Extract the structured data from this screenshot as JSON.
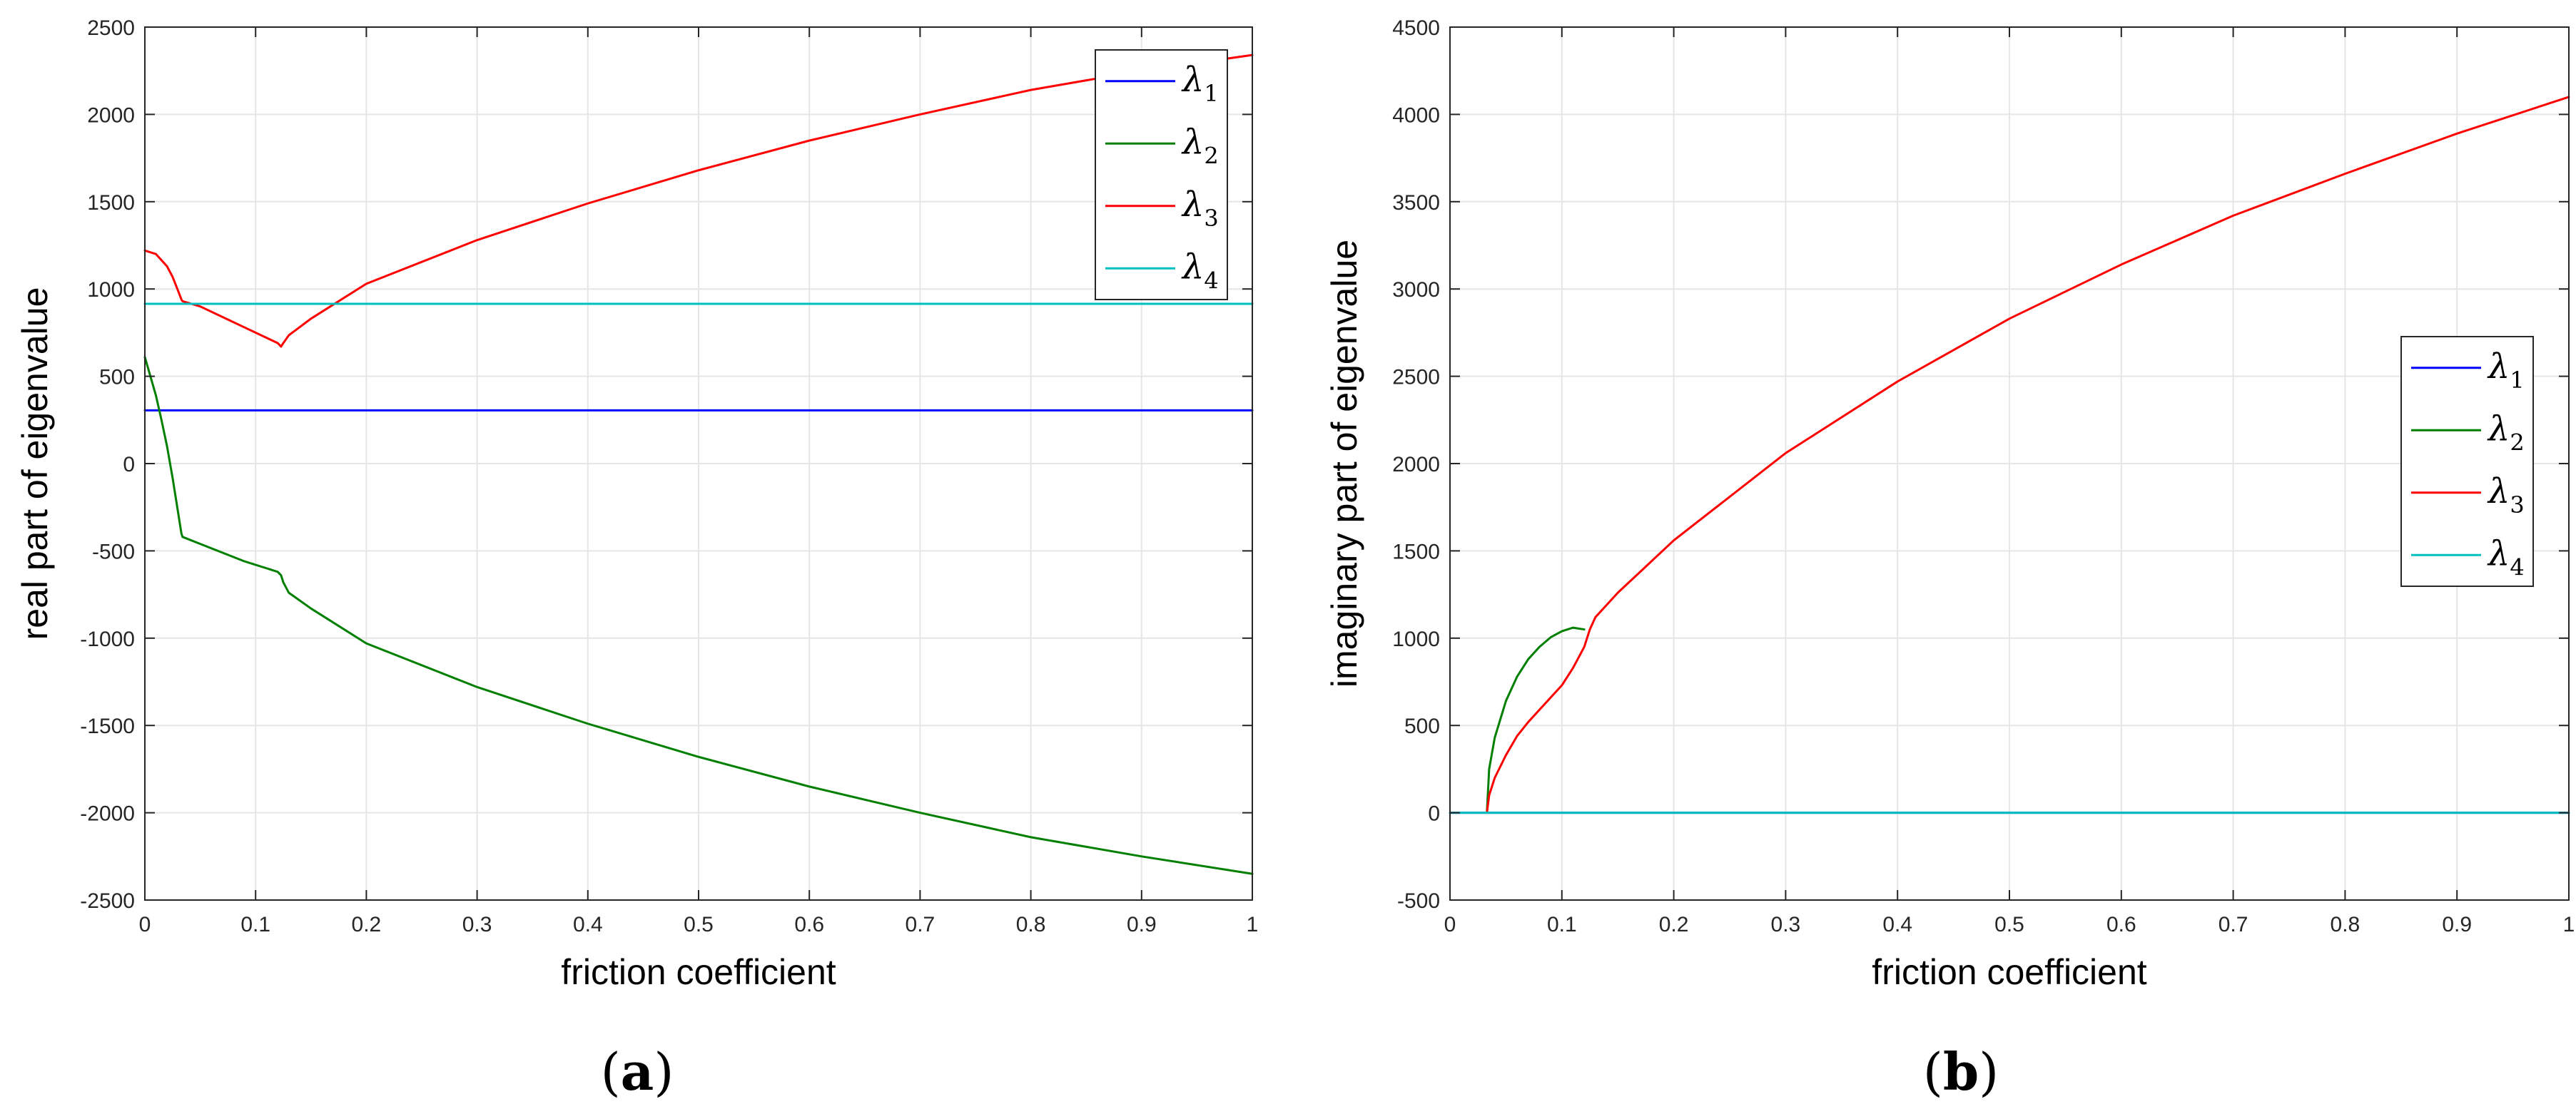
{
  "chart_data": [
    {
      "type": "line",
      "panel_label": "a",
      "title": "",
      "xlabel": "friction coefficient",
      "ylabel": "real part of eigenvalue",
      "xlim": [
        0,
        1
      ],
      "ylim": [
        -2500,
        2500
      ],
      "xticks": [
        0,
        0.1,
        0.2,
        0.3,
        0.4,
        0.5,
        0.6,
        0.7,
        0.8,
        0.9,
        1
      ],
      "xtick_labels": [
        "0",
        "0.1",
        "0.2",
        "0.3",
        "0.4",
        "0.5",
        "0.6",
        "0.7",
        "0.8",
        "0.9",
        "1"
      ],
      "yticks": [
        -2500,
        -2000,
        -1500,
        -1000,
        -500,
        0,
        500,
        1000,
        1500,
        2000,
        2500
      ],
      "ytick_labels": [
        "-2500",
        "-2000",
        "-1500",
        "-1000",
        "-500",
        "0",
        "500",
        "1000",
        "1500",
        "2000",
        "2500"
      ],
      "grid": true,
      "legend_position": "top-right",
      "series": [
        {
          "name": "λ1",
          "base": "λ",
          "sub": "1",
          "color": "#0000ff",
          "x": [
            0,
            1
          ],
          "y": [
            305,
            305
          ]
        },
        {
          "name": "λ2",
          "base": "λ",
          "sub": "2",
          "color": "#007f00",
          "x": [
            0,
            0.005,
            0.01,
            0.015,
            0.02,
            0.025,
            0.03,
            0.033,
            0.034,
            0.05,
            0.07,
            0.09,
            0.11,
            0.12,
            0.123,
            0.125,
            0.13,
            0.15,
            0.2,
            0.3,
            0.4,
            0.5,
            0.6,
            0.7,
            0.8,
            0.9,
            1.0
          ],
          "y": [
            610,
            500,
            390,
            250,
            100,
            -80,
            -280,
            -400,
            -420,
            -460,
            -510,
            -560,
            -600,
            -620,
            -640,
            -680,
            -740,
            -830,
            -1030,
            -1280,
            -1490,
            -1680,
            -1850,
            -2000,
            -2140,
            -2250,
            -2350
          ]
        },
        {
          "name": "λ3",
          "base": "λ",
          "sub": "3",
          "color": "#ff0000",
          "x": [
            0,
            0.01,
            0.02,
            0.025,
            0.03,
            0.033,
            0.034,
            0.05,
            0.07,
            0.09,
            0.11,
            0.12,
            0.123,
            0.125,
            0.13,
            0.15,
            0.2,
            0.3,
            0.4,
            0.5,
            0.6,
            0.7,
            0.8,
            0.9,
            1.0
          ],
          "y": [
            1220,
            1200,
            1130,
            1070,
            990,
            940,
            930,
            900,
            840,
            780,
            720,
            690,
            670,
            690,
            735,
            830,
            1030,
            1280,
            1490,
            1680,
            1850,
            2000,
            2140,
            2250,
            2340
          ]
        },
        {
          "name": "λ4",
          "base": "λ",
          "sub": "4",
          "color": "#00bfbf",
          "x": [
            0,
            1
          ],
          "y": [
            915,
            915
          ]
        }
      ]
    },
    {
      "type": "line",
      "panel_label": "b",
      "title": "",
      "xlabel": "friction coefficient",
      "ylabel": "imaginary part of eigenvalue",
      "xlim": [
        0,
        1
      ],
      "ylim": [
        -500,
        4500
      ],
      "xticks": [
        0,
        0.1,
        0.2,
        0.3,
        0.4,
        0.5,
        0.6,
        0.7,
        0.8,
        0.9,
        1
      ],
      "xtick_labels": [
        "0",
        "0.1",
        "0.2",
        "0.3",
        "0.4",
        "0.5",
        "0.6",
        "0.7",
        "0.8",
        "0.9",
        "1"
      ],
      "yticks": [
        -500,
        0,
        500,
        1000,
        1500,
        2000,
        2500,
        3000,
        3500,
        4000,
        4500
      ],
      "ytick_labels": [
        "-500",
        "0",
        "500",
        "1000",
        "1500",
        "2000",
        "2500",
        "3000",
        "3500",
        "4000",
        "4500"
      ],
      "grid": true,
      "legend_position": "middle-right",
      "series": [
        {
          "name": "λ1",
          "base": "λ",
          "sub": "1",
          "color": "#0000ff",
          "x": [
            0,
            1
          ],
          "y": [
            0,
            0
          ]
        },
        {
          "name": "λ2",
          "base": "λ",
          "sub": "2",
          "color": "#007f00",
          "x": [
            0.033,
            0.035,
            0.04,
            0.05,
            0.06,
            0.07,
            0.08,
            0.09,
            0.1,
            0.11,
            0.12
          ],
          "y": [
            0,
            250,
            430,
            640,
            780,
            880,
            950,
            1005,
            1040,
            1060,
            1050
          ]
        },
        {
          "name": "λ3",
          "base": "λ",
          "sub": "3",
          "color": "#ff0000",
          "x": [
            0.033,
            0.035,
            0.04,
            0.05,
            0.06,
            0.07,
            0.08,
            0.09,
            0.1,
            0.11,
            0.12,
            0.125,
            0.13,
            0.15,
            0.2,
            0.3,
            0.4,
            0.5,
            0.6,
            0.7,
            0.8,
            0.9,
            1.0
          ],
          "y": [
            0,
            100,
            200,
            330,
            440,
            520,
            590,
            660,
            730,
            830,
            950,
            1050,
            1120,
            1260,
            1560,
            2060,
            2470,
            2830,
            3140,
            3420,
            3660,
            3890,
            4100
          ]
        },
        {
          "name": "λ4",
          "base": "λ",
          "sub": "4",
          "color": "#00bfbf",
          "x": [
            0,
            1
          ],
          "y": [
            0,
            0
          ]
        }
      ]
    }
  ]
}
